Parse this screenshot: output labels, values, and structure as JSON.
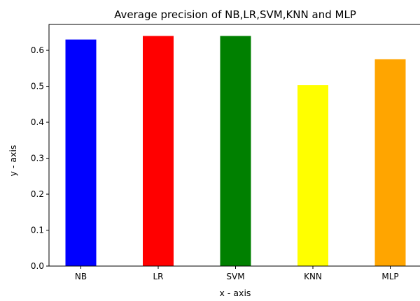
{
  "chart_data": {
    "type": "bar",
    "title": "Average precision of NB,LR,SVM,KNN and MLP",
    "xlabel": "x - axis",
    "ylabel": "y - axis",
    "categories": [
      "NB",
      "LR",
      "SVM",
      "KNN",
      "MLP"
    ],
    "values": [
      0.63,
      0.64,
      0.64,
      0.503,
      0.575
    ],
    "colors": [
      "#0000ff",
      "#ff0000",
      "#008000",
      "#ffff00",
      "#ffa500"
    ],
    "ylim": [
      0,
      0.672
    ],
    "yticks": [
      "0.0",
      "0.1",
      "0.2",
      "0.3",
      "0.4",
      "0.5",
      "0.6"
    ],
    "grid": false,
    "legend": "none"
  }
}
